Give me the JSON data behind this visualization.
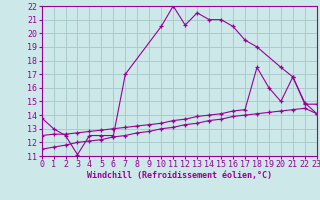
{
  "bg_color": "#cde8e8",
  "grid_color": "#aacccc",
  "line_color": "#990099",
  "xlabel": "Windchill (Refroidissement éolien,°C)",
  "xlim": [
    0,
    23
  ],
  "ylim": [
    11,
    22
  ],
  "xticks": [
    0,
    1,
    2,
    3,
    4,
    5,
    6,
    7,
    8,
    9,
    10,
    11,
    12,
    13,
    14,
    15,
    16,
    17,
    18,
    19,
    20,
    21,
    22,
    23
  ],
  "yticks": [
    11,
    12,
    13,
    14,
    15,
    16,
    17,
    18,
    19,
    20,
    21,
    22
  ],
  "line1_x": [
    0,
    1,
    2,
    3,
    4,
    5,
    6,
    7,
    10,
    11,
    12,
    13,
    14,
    15,
    16,
    17,
    18,
    20,
    21,
    22,
    23
  ],
  "line1_y": [
    13.8,
    13.0,
    12.5,
    11.1,
    12.5,
    12.5,
    12.5,
    17.0,
    20.5,
    22.0,
    20.6,
    21.5,
    21.0,
    21.0,
    20.5,
    19.5,
    19.0,
    17.5,
    16.8,
    14.8,
    14.8
  ],
  "line2_x": [
    0,
    1,
    2,
    3,
    4,
    5,
    6,
    7,
    8,
    9,
    10,
    11,
    12,
    13,
    14,
    15,
    16,
    17,
    18,
    19,
    20,
    21,
    22,
    23
  ],
  "line2_y": [
    12.5,
    12.6,
    12.6,
    12.7,
    12.8,
    12.9,
    13.0,
    13.1,
    13.2,
    13.3,
    13.4,
    13.6,
    13.7,
    13.9,
    14.0,
    14.1,
    14.3,
    14.4,
    17.5,
    16.0,
    15.0,
    16.8,
    14.9,
    14.1
  ],
  "line3_x": [
    0,
    1,
    2,
    3,
    4,
    5,
    6,
    7,
    8,
    9,
    10,
    11,
    12,
    13,
    14,
    15,
    16,
    17,
    18,
    19,
    20,
    21,
    22,
    23
  ],
  "line3_y": [
    11.5,
    11.65,
    11.8,
    12.0,
    12.1,
    12.2,
    12.4,
    12.5,
    12.7,
    12.8,
    13.0,
    13.1,
    13.3,
    13.4,
    13.6,
    13.7,
    13.9,
    14.0,
    14.1,
    14.2,
    14.3,
    14.4,
    14.5,
    14.1
  ],
  "font_size": 6,
  "marker": "+"
}
